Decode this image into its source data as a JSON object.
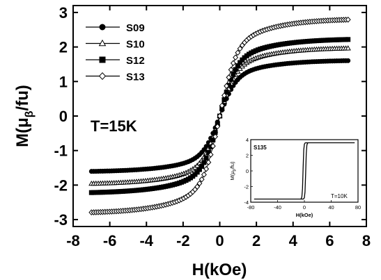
{
  "chart_data": [
    {
      "type": "scatter",
      "xlabel": "H(kOe)",
      "ylabel_base": "M(μ",
      "ylabel_sub": "β",
      "ylabel_tail": "/fu)",
      "xlim": [
        -8,
        8
      ],
      "ylim": [
        -3.2,
        3.2
      ],
      "xticks": [
        -8,
        -6,
        -4,
        -2,
        0,
        2,
        4,
        6,
        8
      ],
      "yticks": [
        -3,
        -2,
        -1,
        0,
        1,
        2,
        3
      ],
      "annotation": "T=15K",
      "grid": false,
      "legend_position": "top-left",
      "x_range_of_data": [
        -7,
        7
      ],
      "points_per_half": 57,
      "series": [
        {
          "name": "S09",
          "marker": "filled-circle",
          "saturation": 1.62,
          "field_scale": 1.35,
          "line_color": "#000000"
        },
        {
          "name": "S10",
          "marker": "open-triangle",
          "saturation": 1.98,
          "field_scale": 1.35,
          "line_color": "#000000"
        },
        {
          "name": "S12",
          "marker": "filled-square",
          "saturation": 2.24,
          "field_scale": 1.35,
          "line_color": "#000000"
        },
        {
          "name": "S13",
          "marker": "open-diamond",
          "saturation": 2.82,
          "field_scale": 1.35,
          "line_color": "#000000"
        }
      ]
    },
    {
      "type": "line",
      "label": "S135",
      "annotation": "T=10K",
      "xlabel": "H(kOe)",
      "ylabel_base": "M(μ",
      "ylabel_sub": "β",
      "ylabel_tail": "/fu)",
      "xlim": [
        -80,
        80
      ],
      "ylim": [
        -4,
        4
      ],
      "xticks": [
        -80,
        -40,
        0,
        40,
        80
      ],
      "yticks": [
        -4,
        -2,
        0,
        2,
        4
      ],
      "saturation": 3.6,
      "coercive_field": 2,
      "field_scale": 1.1
    }
  ]
}
